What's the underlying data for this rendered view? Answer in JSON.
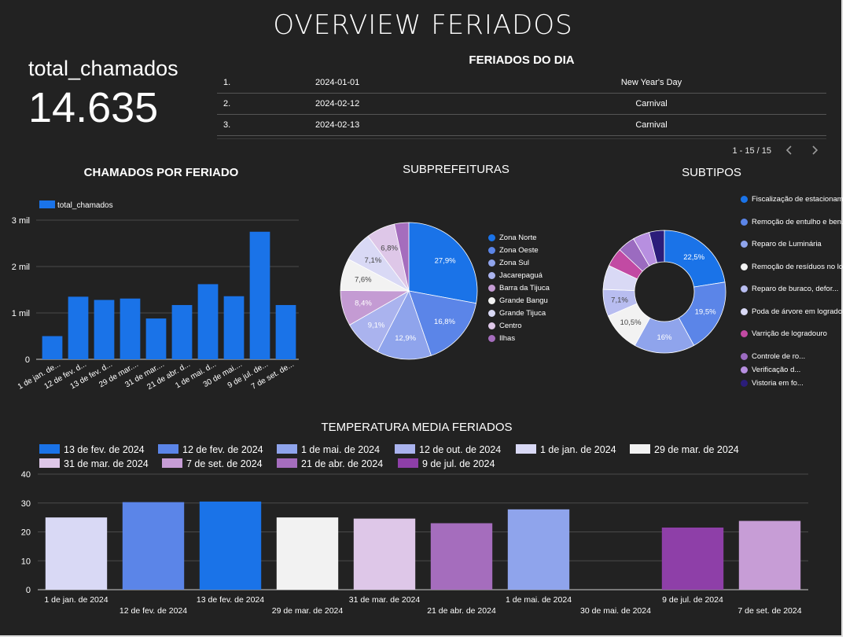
{
  "page": {
    "title": "OVERVIEW FERIADOS"
  },
  "kpi": {
    "label": "total_chamados",
    "value": "14.635"
  },
  "feriados_table": {
    "title": "FERIADOS DO DIA",
    "rows": [
      {
        "idx": "1.",
        "date": "2024-01-01",
        "name": "New Year's Day"
      },
      {
        "idx": "2.",
        "date": "2024-02-12",
        "name": "Carnival"
      },
      {
        "idx": "3.",
        "date": "2024-02-13",
        "name": "Carnival"
      }
    ],
    "pager": "1 - 15 / 15",
    "prev_icon": "chevron-left-icon",
    "next_icon": "chevron-right-icon"
  },
  "colors": {
    "bg": "#222222",
    "accent": "#1a73e8",
    "grid": "#4a4a4a"
  },
  "chart_data": [
    {
      "type": "bar",
      "title": "CHAMADOS POR FERIADO",
      "legend": [
        "total_chamados"
      ],
      "legend_position": "top-left",
      "categories": [
        "1 de jan. de...",
        "12 de fev. d...",
        "13 de fev. d...",
        "29 de mar....",
        "31 de mar....",
        "21 de abr. d...",
        "1 de mai. d...",
        "30 de mai....",
        "9 de jul. de...",
        "7 de set. de..."
      ],
      "values": [
        500,
        1350,
        1280,
        1310,
        880,
        1170,
        1620,
        1360,
        2750,
        1170
      ],
      "ylim": [
        0,
        3000
      ],
      "yticks": [
        "0",
        "1 mil",
        "2 mil",
        "3 mil"
      ],
      "ytick_values": [
        0,
        1000,
        2000,
        3000
      ],
      "grid": true,
      "color": "#1a73e8"
    },
    {
      "type": "pie",
      "title": "SUBPREFEITURAS",
      "labels": [
        "Zona Norte",
        "Zona Oeste",
        "Zona Sul",
        "Jacarepaguá",
        "Barra da Tijuca",
        "Grande Bangu",
        "Grande Tijuca",
        "Centro",
        "Ilhas"
      ],
      "values": [
        27.9,
        16.8,
        12.9,
        9.1,
        8.4,
        7.6,
        7.1,
        6.8,
        3.4
      ],
      "data_labels": [
        "27,9%",
        "16,8%",
        "12,9%",
        "9,1%",
        "8,4%",
        "7,6%",
        "7,1%",
        "6,8%",
        ""
      ],
      "colors": [
        "#1a73e8",
        "#5b85e8",
        "#8fa4ec",
        "#aab3ee",
        "#c49bd3",
        "#f2f2f2",
        "#d9d9f5",
        "#dec7e8",
        "#a56dbd"
      ]
    },
    {
      "type": "pie",
      "title": "SUBTIPOS",
      "donut": true,
      "labels": [
        "Fiscalização de estacioname...",
        "Remoção de entulho e ben...",
        "Reparo de Luminária",
        "Remoção de resíduos no lo...",
        "Reparo de buraco, defor...",
        "Poda de árvore em logradouro",
        "Varrição de logradouro",
        "Controle de ro...",
        "Verificação d...",
        "Vistoria em fo..."
      ],
      "values": [
        22.5,
        19.5,
        16,
        10.5,
        7.1,
        6.4,
        5.0,
        4.6,
        4.4,
        4.0
      ],
      "data_labels": [
        "22,5%",
        "19,5%",
        "16%",
        "10,5%",
        "7,1%",
        "",
        "",
        "",
        "",
        ""
      ],
      "colors": [
        "#1a73e8",
        "#5b85e8",
        "#8fa4ec",
        "#f2f2f2",
        "#b8bdf0",
        "#d9d9f5",
        "#c24aa3",
        "#9b6bc0",
        "#b78fe0",
        "#2b1d7a"
      ]
    },
    {
      "type": "bar",
      "title": "TEMPERATURA MEDIA FERIADOS",
      "legend_position": "top",
      "legend": [
        {
          "name": "13 de fev. de 2024",
          "color": "#1a73e8"
        },
        {
          "name": "12 de fev. de 2024",
          "color": "#5b85e8"
        },
        {
          "name": "1 de mai. de 2024",
          "color": "#8fa4ec"
        },
        {
          "name": "12 de out. de 2024",
          "color": "#aab3ee"
        },
        {
          "name": "1 de jan. de 2024",
          "color": "#d9d9f5"
        },
        {
          "name": "29 de mar. de 2024",
          "color": "#f2f2f2"
        },
        {
          "name": "31 de mar. de 2024",
          "color": "#dec7e8"
        },
        {
          "name": "7 de set. de 2024",
          "color": "#c79dd6"
        },
        {
          "name": "21 de abr. de 2024",
          "color": "#a56dbd"
        },
        {
          "name": "9 de jul. de 2024",
          "color": "#8e3fa8"
        }
      ],
      "categories": [
        "1 de jan. de 2024",
        "12 de fev. de 2024",
        "13 de fev. de 2024",
        "29 de mar. de 2024",
        "31 de mar. de 2024",
        "21 de abr. de 2024",
        "1 de mai. de 2024",
        "30 de mai. de 2024",
        "9 de jul. de 2024",
        "7 de set. de 2024"
      ],
      "values": [
        25,
        30.3,
        30.5,
        25,
        24.6,
        23,
        27.8,
        0,
        21.5,
        23.8
      ],
      "bar_colors": [
        "#d9d9f5",
        "#5b85e8",
        "#1a73e8",
        "#f2f2f2",
        "#dec7e8",
        "#a56dbd",
        "#8fa4ec",
        "#8fa4ec",
        "#8e3fa8",
        "#c79dd6"
      ],
      "ylim": [
        0,
        40
      ],
      "yticks": [
        "0",
        "10",
        "20",
        "30",
        "40"
      ],
      "ytick_values": [
        0,
        10,
        20,
        30,
        40
      ],
      "grid": true
    }
  ]
}
